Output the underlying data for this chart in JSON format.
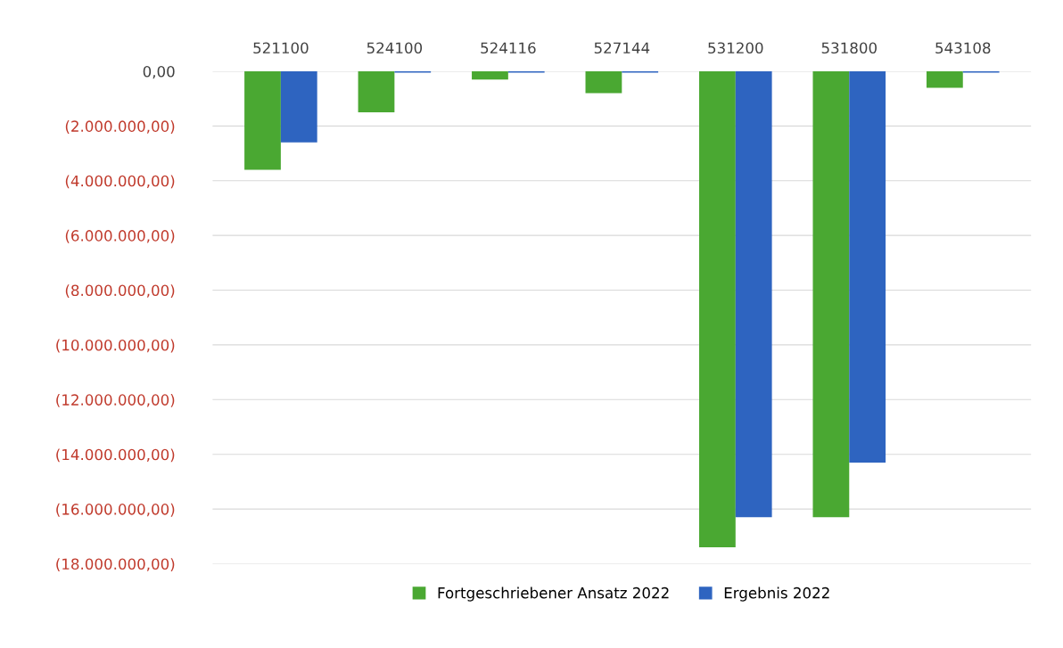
{
  "chart_data": {
    "type": "bar",
    "categories": [
      "521100",
      "524100",
      "524116",
      "527144",
      "531200",
      "531800",
      "543108"
    ],
    "series": [
      {
        "name": "Fortgeschriebener Ansatz 2022",
        "color": "#4aa832",
        "values": [
          -3600000,
          -1500000,
          -300000,
          -800000,
          -17400000,
          -16300000,
          -600000
        ]
      },
      {
        "name": "Ergebnis 2022",
        "color": "#2e64c0",
        "values": [
          -2600000,
          -50000,
          -50000,
          -50000,
          -16300000,
          -14300000,
          -50000
        ]
      }
    ],
    "ylim": [
      -18000000,
      0
    ],
    "yticks": [
      {
        "value": 0,
        "label": "0,00"
      },
      {
        "value": -2000000,
        "label": "(2.000.000,00)"
      },
      {
        "value": -4000000,
        "label": "(4.000.000,00)"
      },
      {
        "value": -6000000,
        "label": "(6.000.000,00)"
      },
      {
        "value": -8000000,
        "label": "(8.000.000,00)"
      },
      {
        "value": -10000000,
        "label": "(10.000.000,00)"
      },
      {
        "value": -12000000,
        "label": "(12.000.000,00)"
      },
      {
        "value": -14000000,
        "label": "(14.000.000,00)"
      },
      {
        "value": -16000000,
        "label": "(16.000.000,00)"
      },
      {
        "value": -18000000,
        "label": "(18.000.000,00)"
      }
    ],
    "grid": "y",
    "legend": "bottom"
  }
}
